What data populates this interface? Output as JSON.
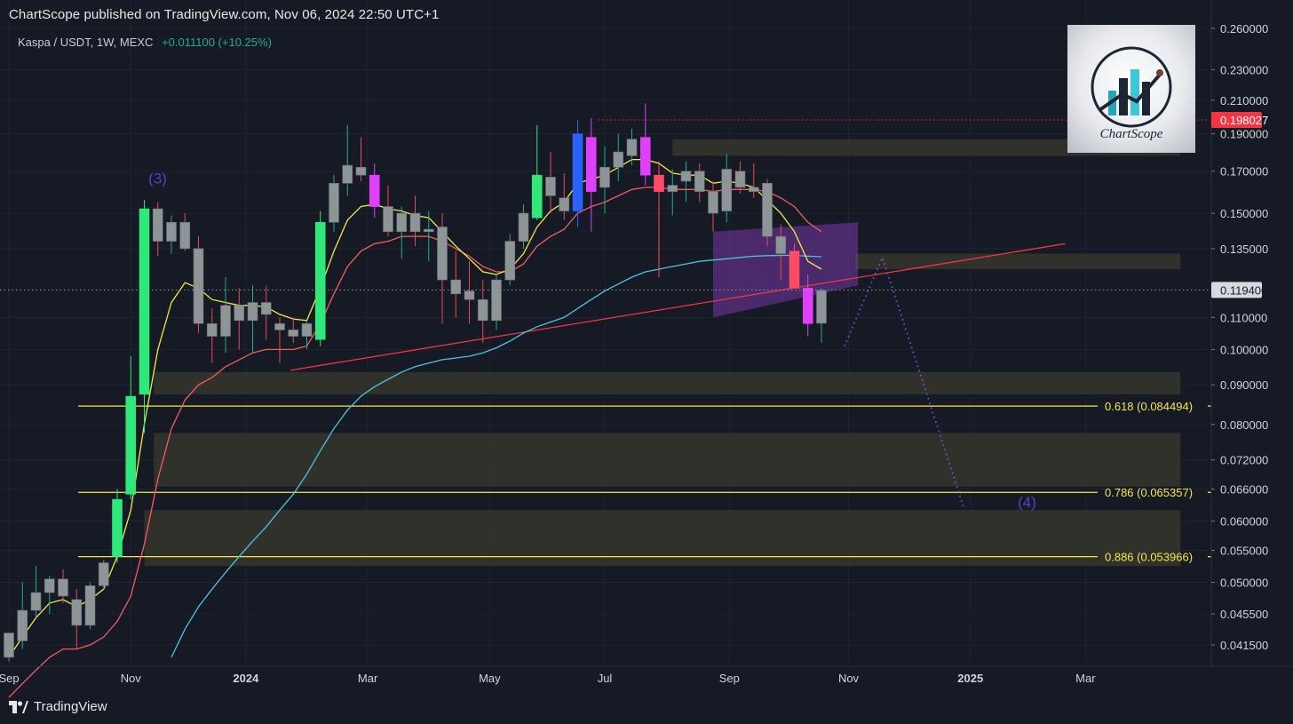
{
  "header": {
    "published": "ChartScope published on TradingView.com, Nov 06, 2024 22:50 UTC+1"
  },
  "symbol": {
    "title": "Kaspa / USDT, 1W, MEXC",
    "change": "+0.011100 (+10.25%)"
  },
  "footer": {
    "brand": "TradingView"
  },
  "logo": {
    "name": "ChartScope"
  },
  "colors": {
    "bg": "#161a25",
    "up": "#2ee87a",
    "down": "#ff4a68",
    "neutral": "#8e9597",
    "ema_fast": "#f5e84a",
    "ema_mid": "#f25d5d",
    "ema_slow": "#4cc3e0",
    "fib": "#f5e84a",
    "zone": "#3a3a2c",
    "projection": "#7a55e6",
    "current_price": "#d7d9de",
    "last_high": "#f23645"
  },
  "chart_data": {
    "type": "candlestick",
    "symbol": "Kaspa / USDT",
    "interval": "1W",
    "exchange": "MEXC",
    "scale": "log",
    "y_ticks": [
      0.26,
      0.23,
      0.21,
      0.19,
      0.17,
      0.15,
      0.135,
      0.1194,
      0.11,
      0.1,
      0.09,
      0.08,
      0.072,
      0.066,
      0.06,
      0.055,
      0.05,
      0.0455,
      0.0415
    ],
    "y_tick_labels": [
      "0.260000",
      "0.230000",
      "0.210000",
      "0.190000",
      "0.170000",
      "0.150000",
      "0.135000",
      "0.119400",
      "0.110000",
      "0.100000",
      "0.090000",
      "0.080000",
      "0.072000",
      "0.066000",
      "0.060000",
      "0.055000",
      "0.050000",
      "0.045500",
      "0.041500"
    ],
    "x_labels": [
      {
        "label": "Sep",
        "week": 0
      },
      {
        "label": "Nov",
        "week": 9
      },
      {
        "label": "2024",
        "week": 17.5
      },
      {
        "label": "Mar",
        "week": 26.5
      },
      {
        "label": "May",
        "week": 35.5
      },
      {
        "label": "Jul",
        "week": 44
      },
      {
        "label": "Sep",
        "week": 53.2
      },
      {
        "label": "Nov",
        "week": 62
      },
      {
        "label": "2025",
        "week": 71
      },
      {
        "label": "Mar",
        "week": 79.5
      }
    ],
    "candles": [
      {
        "o": 0.04,
        "h": 0.0425,
        "l": 0.0395,
        "c": 0.043,
        "k": "n"
      },
      {
        "o": 0.042,
        "h": 0.05,
        "l": 0.041,
        "c": 0.046,
        "k": "n"
      },
      {
        "o": 0.046,
        "h": 0.0525,
        "l": 0.045,
        "c": 0.0485,
        "k": "n"
      },
      {
        "o": 0.0485,
        "h": 0.051,
        "l": 0.0455,
        "c": 0.0505,
        "k": "n"
      },
      {
        "o": 0.0505,
        "h": 0.052,
        "l": 0.047,
        "c": 0.048,
        "k": "n"
      },
      {
        "o": 0.0475,
        "h": 0.049,
        "l": 0.041,
        "c": 0.044,
        "k": "n"
      },
      {
        "o": 0.044,
        "h": 0.05,
        "l": 0.0435,
        "c": 0.0495,
        "k": "n"
      },
      {
        "o": 0.0495,
        "h": 0.0535,
        "l": 0.049,
        "c": 0.053,
        "k": "n"
      },
      {
        "o": 0.054,
        "h": 0.066,
        "l": 0.053,
        "c": 0.064,
        "k": "u"
      },
      {
        "o": 0.065,
        "h": 0.098,
        "l": 0.064,
        "c": 0.087,
        "k": "u"
      },
      {
        "o": 0.0875,
        "h": 0.156,
        "l": 0.078,
        "c": 0.152,
        "k": "u"
      },
      {
        "o": 0.152,
        "h": 0.155,
        "l": 0.132,
        "c": 0.138,
        "k": "n"
      },
      {
        "o": 0.138,
        "h": 0.149,
        "l": 0.133,
        "c": 0.146,
        "k": "n"
      },
      {
        "o": 0.146,
        "h": 0.15,
        "l": 0.134,
        "c": 0.135,
        "k": "n"
      },
      {
        "o": 0.135,
        "h": 0.14,
        "l": 0.105,
        "c": 0.108,
        "k": "n"
      },
      {
        "o": 0.108,
        "h": 0.113,
        "l": 0.096,
        "c": 0.104,
        "k": "n"
      },
      {
        "o": 0.104,
        "h": 0.124,
        "l": 0.099,
        "c": 0.114,
        "k": "n"
      },
      {
        "o": 0.114,
        "h": 0.12,
        "l": 0.1,
        "c": 0.109,
        "k": "n"
      },
      {
        "o": 0.109,
        "h": 0.121,
        "l": 0.099,
        "c": 0.115,
        "k": "n"
      },
      {
        "o": 0.115,
        "h": 0.121,
        "l": 0.103,
        "c": 0.111,
        "k": "n"
      },
      {
        "o": 0.108,
        "h": 0.11,
        "l": 0.096,
        "c": 0.106,
        "k": "n"
      },
      {
        "o": 0.106,
        "h": 0.11,
        "l": 0.102,
        "c": 0.104,
        "k": "n"
      },
      {
        "o": 0.104,
        "h": 0.109,
        "l": 0.1,
        "c": 0.108,
        "k": "n"
      },
      {
        "o": 0.103,
        "h": 0.151,
        "l": 0.101,
        "c": 0.146,
        "k": "u"
      },
      {
        "o": 0.146,
        "h": 0.168,
        "l": 0.142,
        "c": 0.164,
        "k": "n"
      },
      {
        "o": 0.164,
        "h": 0.195,
        "l": 0.158,
        "c": 0.173,
        "k": "n"
      },
      {
        "o": 0.172,
        "h": 0.188,
        "l": 0.165,
        "c": 0.168,
        "k": "n"
      },
      {
        "o": 0.168,
        "h": 0.174,
        "l": 0.148,
        "c": 0.153,
        "k": "m"
      },
      {
        "o": 0.153,
        "h": 0.163,
        "l": 0.14,
        "c": 0.142,
        "k": "n"
      },
      {
        "o": 0.142,
        "h": 0.153,
        "l": 0.131,
        "c": 0.15,
        "k": "n"
      },
      {
        "o": 0.15,
        "h": 0.158,
        "l": 0.136,
        "c": 0.142,
        "k": "n"
      },
      {
        "o": 0.142,
        "h": 0.151,
        "l": 0.13,
        "c": 0.143,
        "k": "n"
      },
      {
        "o": 0.144,
        "h": 0.15,
        "l": 0.108,
        "c": 0.123,
        "k": "n"
      },
      {
        "o": 0.123,
        "h": 0.134,
        "l": 0.11,
        "c": 0.118,
        "k": "n"
      },
      {
        "o": 0.119,
        "h": 0.13,
        "l": 0.108,
        "c": 0.116,
        "k": "n"
      },
      {
        "o": 0.116,
        "h": 0.123,
        "l": 0.102,
        "c": 0.109,
        "k": "n"
      },
      {
        "o": 0.109,
        "h": 0.125,
        "l": 0.106,
        "c": 0.123,
        "k": "n"
      },
      {
        "o": 0.123,
        "h": 0.141,
        "l": 0.121,
        "c": 0.138,
        "k": "n"
      },
      {
        "o": 0.138,
        "h": 0.154,
        "l": 0.135,
        "c": 0.15,
        "k": "n"
      },
      {
        "o": 0.148,
        "h": 0.195,
        "l": 0.147,
        "c": 0.168,
        "k": "u"
      },
      {
        "o": 0.167,
        "h": 0.18,
        "l": 0.15,
        "c": 0.158,
        "k": "n"
      },
      {
        "o": 0.157,
        "h": 0.169,
        "l": 0.147,
        "c": 0.151,
        "k": "n"
      },
      {
        "o": 0.151,
        "h": 0.198,
        "l": 0.144,
        "c": 0.19,
        "k": "b"
      },
      {
        "o": 0.188,
        "h": 0.199,
        "l": 0.142,
        "c": 0.16,
        "k": "m"
      },
      {
        "o": 0.162,
        "h": 0.183,
        "l": 0.15,
        "c": 0.172,
        "k": "n"
      },
      {
        "o": 0.172,
        "h": 0.19,
        "l": 0.165,
        "c": 0.18,
        "k": "n"
      },
      {
        "o": 0.178,
        "h": 0.193,
        "l": 0.173,
        "c": 0.187,
        "k": "n"
      },
      {
        "o": 0.188,
        "h": 0.208,
        "l": 0.163,
        "c": 0.168,
        "k": "m"
      },
      {
        "o": 0.168,
        "h": 0.175,
        "l": 0.124,
        "c": 0.16,
        "k": "d"
      },
      {
        "o": 0.16,
        "h": 0.171,
        "l": 0.149,
        "c": 0.163,
        "k": "n"
      },
      {
        "o": 0.165,
        "h": 0.175,
        "l": 0.155,
        "c": 0.17,
        "k": "n"
      },
      {
        "o": 0.17,
        "h": 0.174,
        "l": 0.155,
        "c": 0.16,
        "k": "n"
      },
      {
        "o": 0.16,
        "h": 0.165,
        "l": 0.142,
        "c": 0.15,
        "k": "n"
      },
      {
        "o": 0.151,
        "h": 0.179,
        "l": 0.146,
        "c": 0.171,
        "k": "n"
      },
      {
        "o": 0.17,
        "h": 0.175,
        "l": 0.159,
        "c": 0.162,
        "k": "n"
      },
      {
        "o": 0.162,
        "h": 0.174,
        "l": 0.157,
        "c": 0.16,
        "k": "n"
      },
      {
        "o": 0.164,
        "h": 0.166,
        "l": 0.136,
        "c": 0.14,
        "k": "n"
      },
      {
        "o": 0.14,
        "h": 0.145,
        "l": 0.123,
        "c": 0.133,
        "k": "n"
      },
      {
        "o": 0.134,
        "h": 0.137,
        "l": 0.12,
        "c": 0.12,
        "k": "d"
      },
      {
        "o": 0.12,
        "h": 0.125,
        "l": 0.104,
        "c": 0.108,
        "k": "m"
      },
      {
        "o": 0.1081,
        "h": 0.12,
        "l": 0.102,
        "c": 0.1192,
        "k": "n"
      }
    ],
    "ema_fast": [
      0.04,
      0.0425,
      0.045,
      0.047,
      0.0475,
      0.0465,
      0.0475,
      0.049,
      0.054,
      0.062,
      0.08,
      0.1,
      0.115,
      0.122,
      0.12,
      0.116,
      0.115,
      0.114,
      0.114,
      0.1135,
      0.111,
      0.1095,
      0.109,
      0.12,
      0.134,
      0.147,
      0.153,
      0.154,
      0.152,
      0.151,
      0.149,
      0.148,
      0.142,
      0.136,
      0.131,
      0.126,
      0.125,
      0.127,
      0.133,
      0.144,
      0.151,
      0.155,
      0.164,
      0.166,
      0.168,
      0.172,
      0.176,
      0.176,
      0.174,
      0.169,
      0.168,
      0.168,
      0.164,
      0.165,
      0.164,
      0.162,
      0.156,
      0.15,
      0.142,
      0.13,
      0.127
    ],
    "ema_mid": [
      0.0355,
      0.037,
      0.0385,
      0.04,
      0.041,
      0.041,
      0.0415,
      0.0425,
      0.0445,
      0.048,
      0.056,
      0.068,
      0.079,
      0.086,
      0.09,
      0.092,
      0.095,
      0.097,
      0.099,
      0.1,
      0.1,
      0.1,
      0.101,
      0.108,
      0.118,
      0.128,
      0.134,
      0.137,
      0.138,
      0.14,
      0.14,
      0.14,
      0.138,
      0.135,
      0.132,
      0.128,
      0.126,
      0.126,
      0.129,
      0.136,
      0.14,
      0.143,
      0.15,
      0.153,
      0.155,
      0.158,
      0.161,
      0.162,
      0.162,
      0.161,
      0.161,
      0.161,
      0.16,
      0.161,
      0.161,
      0.161,
      0.16,
      0.157,
      0.153,
      0.146,
      0.142
    ],
    "ema_slow": [
      null,
      null,
      null,
      null,
      null,
      null,
      null,
      null,
      null,
      null,
      null,
      null,
      0.04,
      0.0435,
      0.0465,
      0.049,
      0.0515,
      0.054,
      0.0565,
      0.059,
      0.062,
      0.065,
      0.069,
      0.074,
      0.079,
      0.0835,
      0.087,
      0.0895,
      0.0915,
      0.0935,
      0.095,
      0.096,
      0.097,
      0.0975,
      0.098,
      0.099,
      0.1005,
      0.1025,
      0.105,
      0.107,
      0.1085,
      0.11,
      0.113,
      0.116,
      0.119,
      0.1215,
      0.124,
      0.126,
      0.127,
      0.128,
      0.129,
      0.13,
      0.1305,
      0.131,
      0.1315,
      0.132,
      0.1322,
      0.1323,
      0.1323,
      0.132,
      0.1318
    ],
    "trendline": {
      "from": [
        20.8,
        0.094
      ],
      "to": [
        78.0,
        0.137
      ]
    },
    "fib_levels": [
      {
        "ratio": "0.618",
        "value": 0.084494,
        "label": "0.618 (0.084494)"
      },
      {
        "ratio": "0.786",
        "value": 0.065357,
        "label": "0.786 (0.065357)"
      },
      {
        "ratio": "0.886",
        "value": 0.053966,
        "label": "0.886 (0.053966)"
      }
    ],
    "zones": [
      {
        "from": 49.0,
        "to": 86.5,
        "y1": 0.178,
        "y2": 0.187
      },
      {
        "from": 62.5,
        "to": 86.5,
        "y1": 0.127,
        "y2": 0.133
      },
      {
        "from": 10.7,
        "to": 86.5,
        "y1": 0.0875,
        "y2": 0.0935
      },
      {
        "from": 10.7,
        "to": 86.5,
        "y1": 0.0665,
        "y2": 0.078
      },
      {
        "from": 10.0,
        "to": 86.5,
        "y1": 0.0525,
        "y2": 0.062
      }
    ],
    "forecast_box": {
      "from": 52.0,
      "to": 62.7,
      "y_left_top": 0.142,
      "y_right_top": 0.146,
      "y_left_bottom": 0.11,
      "y_right_bottom": 0.121
    },
    "projection": [
      [
        61.7,
        0.101
      ],
      [
        64.5,
        0.1315
      ],
      [
        70.5,
        0.0625
      ]
    ],
    "annotations": [
      {
        "text": "(3)",
        "x": 10.3,
        "y": 0.164
      },
      {
        "text": "(4)",
        "x": 74.5,
        "y": 0.0625
      }
    ],
    "last_price": {
      "value": 0.1194,
      "label": "0.119400"
    },
    "recent_high": {
      "value": 0.198027,
      "label": "0.198027"
    }
  }
}
